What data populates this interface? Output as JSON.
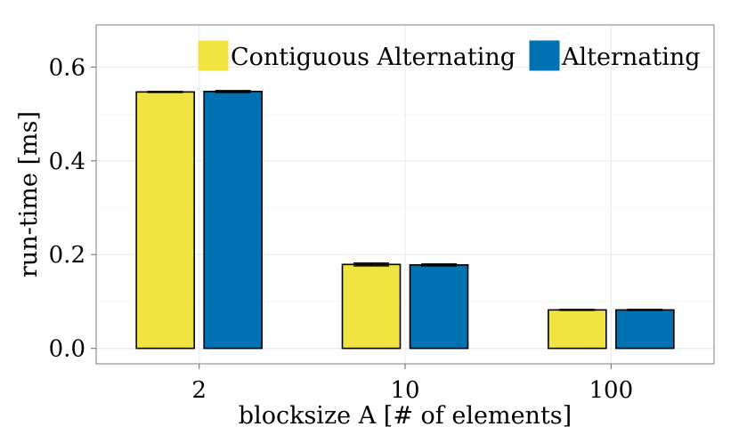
{
  "chart_data": {
    "type": "bar",
    "title": "",
    "xlabel": "blocksize A [# of elements]",
    "ylabel": "run-time [ms]",
    "categories": [
      "2",
      "10",
      "100"
    ],
    "ylim": [
      -0.033,
      0.69
    ],
    "yticks": [
      "0.0",
      "0.2",
      "0.4",
      "0.6"
    ],
    "grid": true,
    "legend_position": "top-right",
    "series": [
      {
        "name": "Contiguous Alternating",
        "color": "#F0E442",
        "values": [
          0.547,
          0.179,
          0.082
        ],
        "errors": [
          0.001,
          0.003,
          0.001
        ]
      },
      {
        "name": "Alternating",
        "color": "#0072B2",
        "values": [
          0.548,
          0.178,
          0.082
        ],
        "errors": [
          0.002,
          0.002,
          0.001
        ]
      }
    ]
  }
}
